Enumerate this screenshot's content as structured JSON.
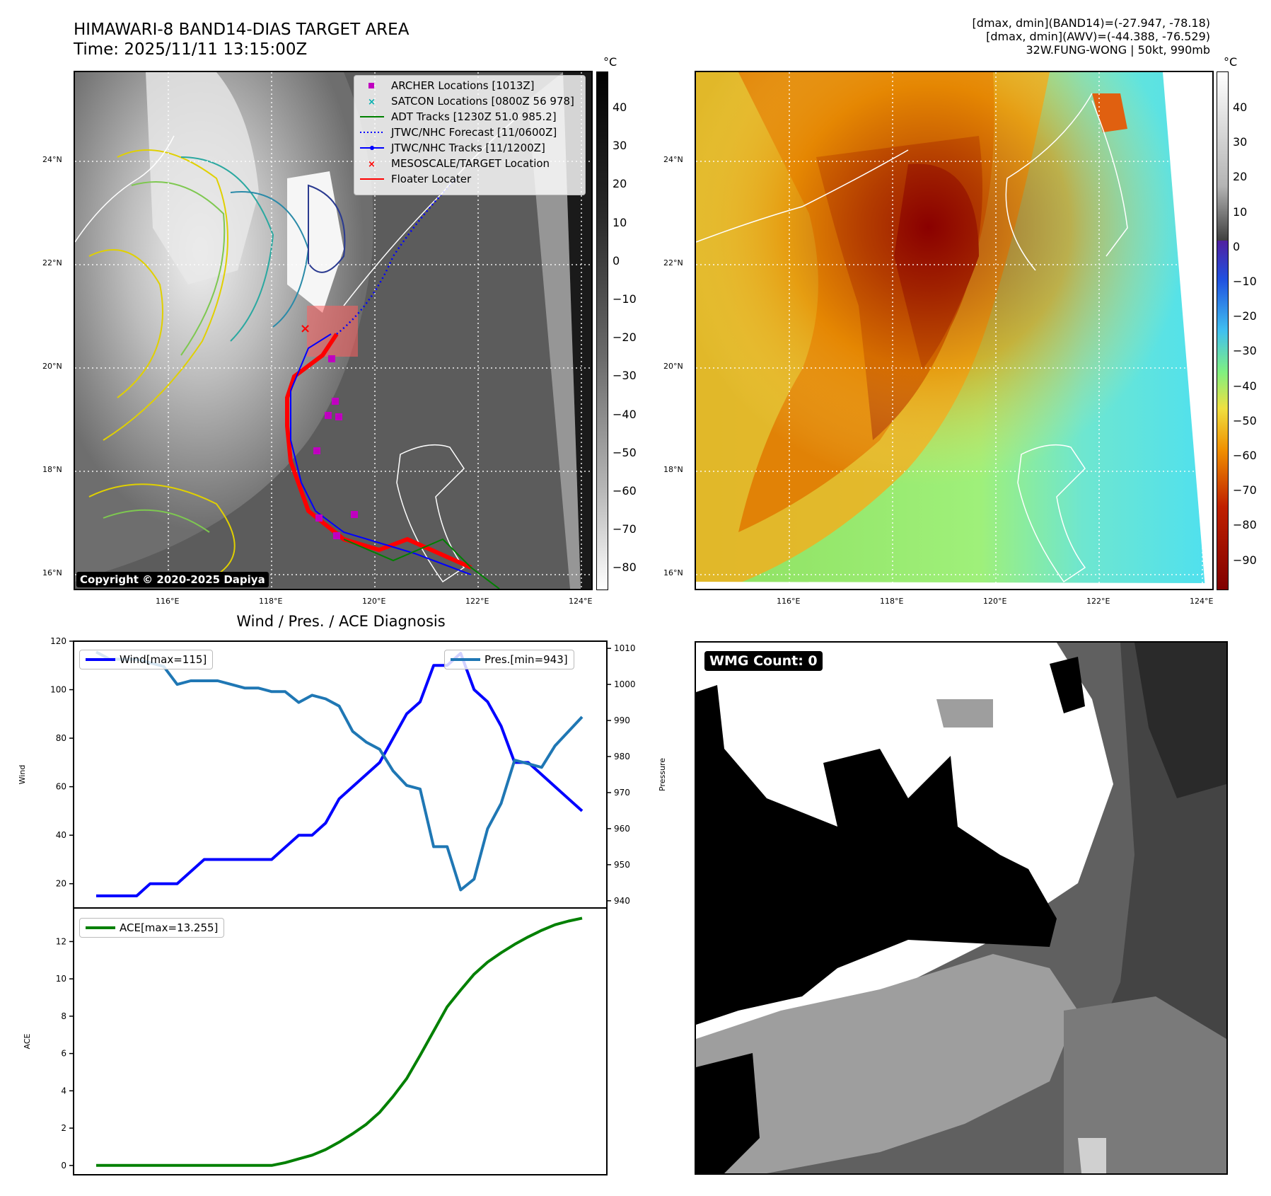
{
  "header": {
    "title_line1": "HIMAWARI-8 BAND14-DIAS TARGET AREA",
    "title_line2": "Time: 2025/11/11 13:15:00Z",
    "info_line1": "[dmax, dmin](BAND14)=(-27.947, -78.18)",
    "info_line2": "[dmax, dmin](AWV)=(-44.388, -76.529)",
    "info_line3": "32W.FUNG-WONG | 50kt, 990mb"
  },
  "maps": {
    "lon_ticks": [
      "116°E",
      "118°E",
      "120°E",
      "122°E",
      "124°E"
    ],
    "lat_ticks": [
      "24°N",
      "22°N",
      "20°N",
      "18°N",
      "16°N"
    ],
    "unit": "°C",
    "copyright": "Copyright © 2020-2025 Dapiya",
    "left_colorbar_ticks": [
      "40",
      "30",
      "20",
      "10",
      "0",
      "−10",
      "−20",
      "−30",
      "−40",
      "−50",
      "−60",
      "−70",
      "−80"
    ],
    "right_colorbar_ticks": [
      "40",
      "30",
      "20",
      "10",
      "0",
      "−10",
      "−20",
      "−30",
      "−40",
      "−50",
      "−60",
      "−70",
      "−80",
      "−90"
    ],
    "legend": [
      {
        "label": "ARCHER Locations [1013Z]",
        "marker": "square",
        "color": "#c000c0"
      },
      {
        "label": "SATCON Locations [0800Z 56 978]",
        "marker": "x",
        "color": "#00b0b0"
      },
      {
        "label": "ADT Tracks [1230Z 51.0 985.2]",
        "marker": "line",
        "color": "#008000"
      },
      {
        "label": "JTWC/NHC Forecast [11/0600Z]",
        "marker": "dotted",
        "color": "#0000ff"
      },
      {
        "label": "JTWC/NHC Tracks [11/1200Z]",
        "marker": "line-dot",
        "color": "#0000ff"
      },
      {
        "label": "MESOSCALE/TARGET Location",
        "marker": "x",
        "color": "#ff0000"
      },
      {
        "label": "Floater Locater",
        "marker": "line",
        "color": "#ff0000"
      }
    ]
  },
  "diagnosis": {
    "title": "Wind / Pres. / ACE Diagnosis",
    "wind_label": "Wind",
    "pressure_label": "Pressure",
    "ace_label": "ACE",
    "wind_legend": "Wind[max=115]",
    "pressure_legend": "Pres.[min=943]",
    "ace_legend": "ACE[max=13.255]",
    "wind_ticks": [
      "120",
      "100",
      "80",
      "60",
      "40",
      "20"
    ],
    "pressure_ticks": [
      "1010",
      "1000",
      "990",
      "980",
      "970",
      "960",
      "950",
      "940"
    ],
    "ace_ticks": [
      "12",
      "10",
      "8",
      "6",
      "4",
      "2",
      "0"
    ]
  },
  "wmg": {
    "label": "WMG Count: 0"
  },
  "chart_data": [
    {
      "type": "line",
      "title": "Wind / Pres. / ACE Diagnosis",
      "ylabel": "Wind",
      "y2label": "Pressure",
      "ylim": [
        10,
        120
      ],
      "y2lim": [
        938,
        1012
      ],
      "series": [
        {
          "name": "Wind[max=115]",
          "color": "#0000ff",
          "values": [
            15,
            15,
            15,
            15,
            20,
            20,
            20,
            25,
            30,
            30,
            30,
            30,
            30,
            30,
            35,
            40,
            40,
            45,
            55,
            60,
            65,
            70,
            80,
            90,
            95,
            110,
            110,
            115,
            100,
            95,
            85,
            70,
            70,
            65,
            60,
            55,
            50
          ]
        },
        {
          "name": "Pres.[min=943]",
          "color": "#1f77b4",
          "axis": "right",
          "values": [
            1009,
            1007,
            1007,
            1007,
            1006,
            1005,
            1000,
            1001,
            1001,
            1001,
            1000,
            999,
            999,
            998,
            998,
            995,
            997,
            996,
            994,
            987,
            984,
            982,
            976,
            972,
            971,
            955,
            955,
            943,
            946,
            960,
            967,
            979,
            978,
            977,
            983,
            987,
            991
          ]
        }
      ]
    },
    {
      "type": "line",
      "ylabel": "ACE",
      "ylim": [
        -0.5,
        13.8
      ],
      "series": [
        {
          "name": "ACE[max=13.255]",
          "color": "#008000",
          "values": [
            0,
            0,
            0,
            0,
            0,
            0,
            0,
            0,
            0,
            0,
            0,
            0,
            0,
            0,
            0.15,
            0.35,
            0.55,
            0.85,
            1.25,
            1.7,
            2.2,
            2.85,
            3.7,
            4.65,
            5.9,
            7.2,
            8.5,
            9.4,
            10.25,
            10.9,
            11.4,
            11.85,
            12.25,
            12.6,
            12.9,
            13.1,
            13.255
          ]
        }
      ]
    }
  ]
}
